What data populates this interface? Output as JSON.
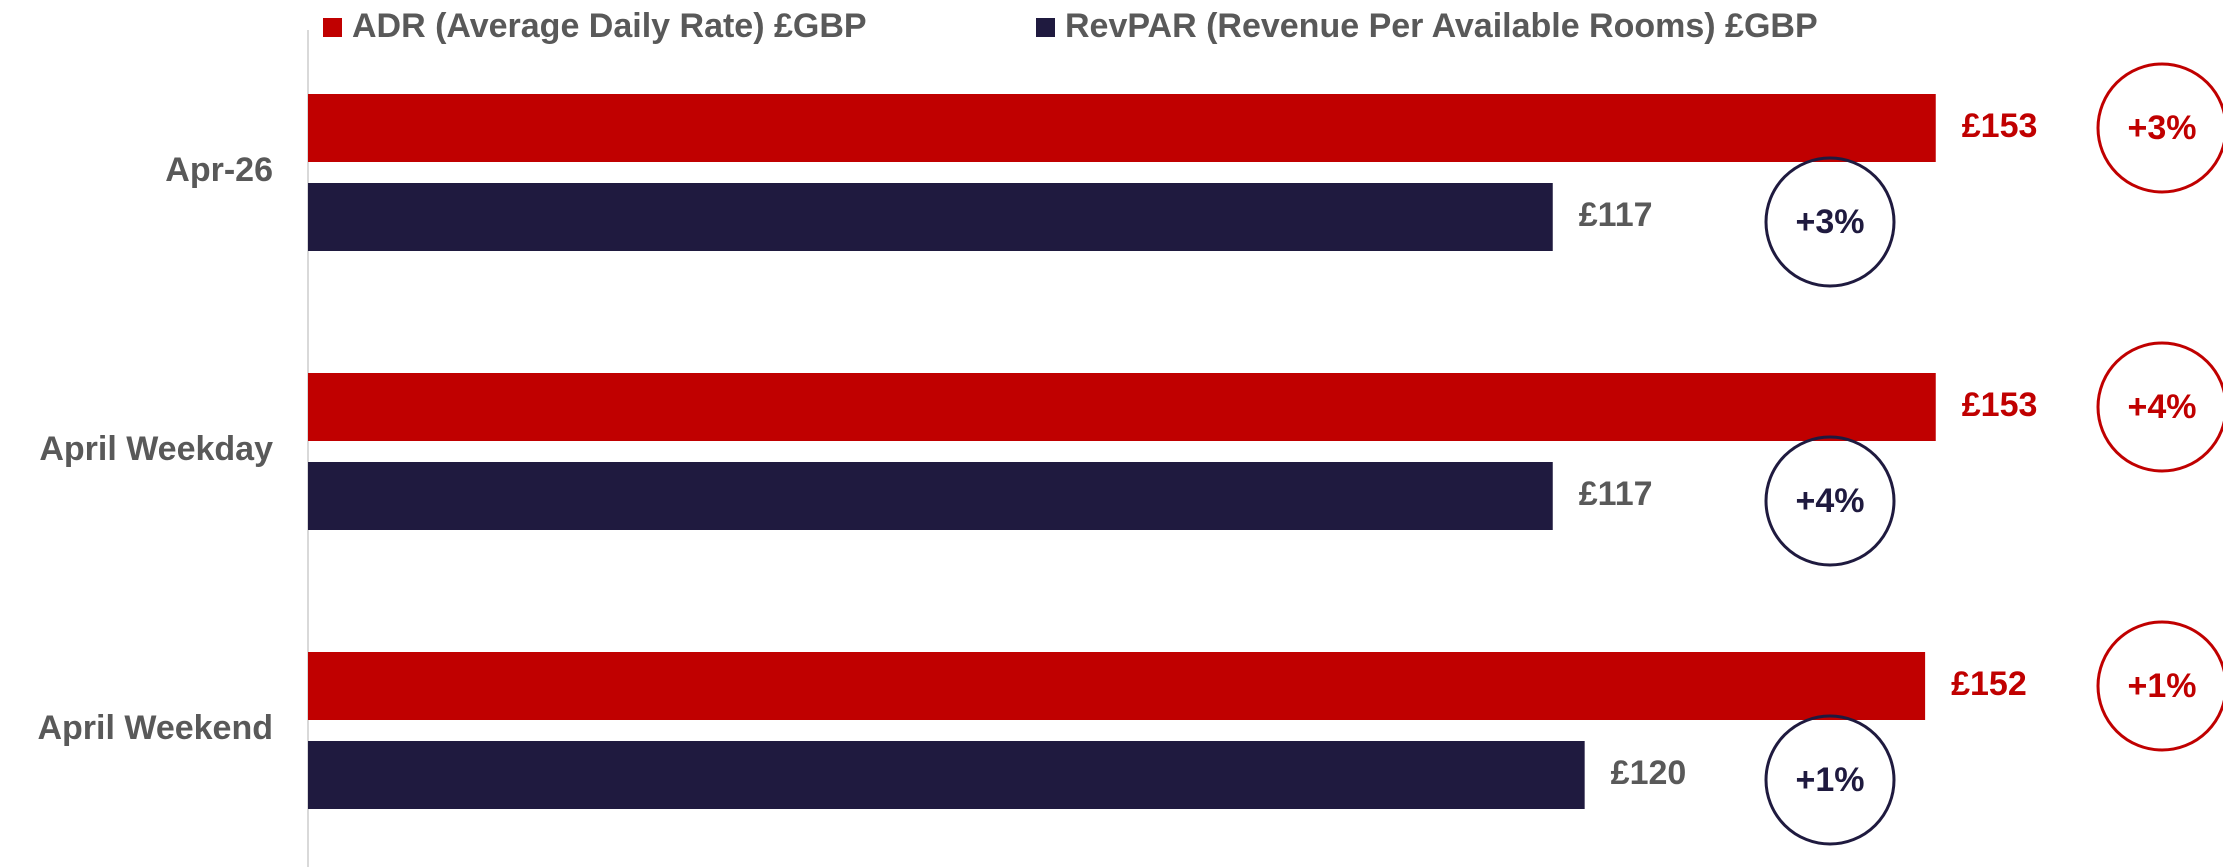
{
  "chart_data": {
    "type": "barh",
    "categories": [
      "Apr-26",
      "April Weekday",
      "April Weekend"
    ],
    "series": [
      {
        "name": "ADR (Average Daily Rate) £GBP",
        "color": "#c00000",
        "values": [
          153,
          153,
          152
        ],
        "value_labels": [
          "£153",
          "£153",
          "£152"
        ],
        "changes": [
          "+3%",
          "+4%",
          "+1%"
        ]
      },
      {
        "name": "RevPAR (Revenue Per Available Rooms) £GBP",
        "color": "#1f1a3f",
        "values": [
          117,
          117,
          120
        ],
        "value_labels": [
          "£117",
          "£117",
          "£120"
        ],
        "changes": [
          "+3%",
          "+4%",
          "+1%"
        ]
      }
    ],
    "xlim": [
      0,
      180
    ]
  }
}
